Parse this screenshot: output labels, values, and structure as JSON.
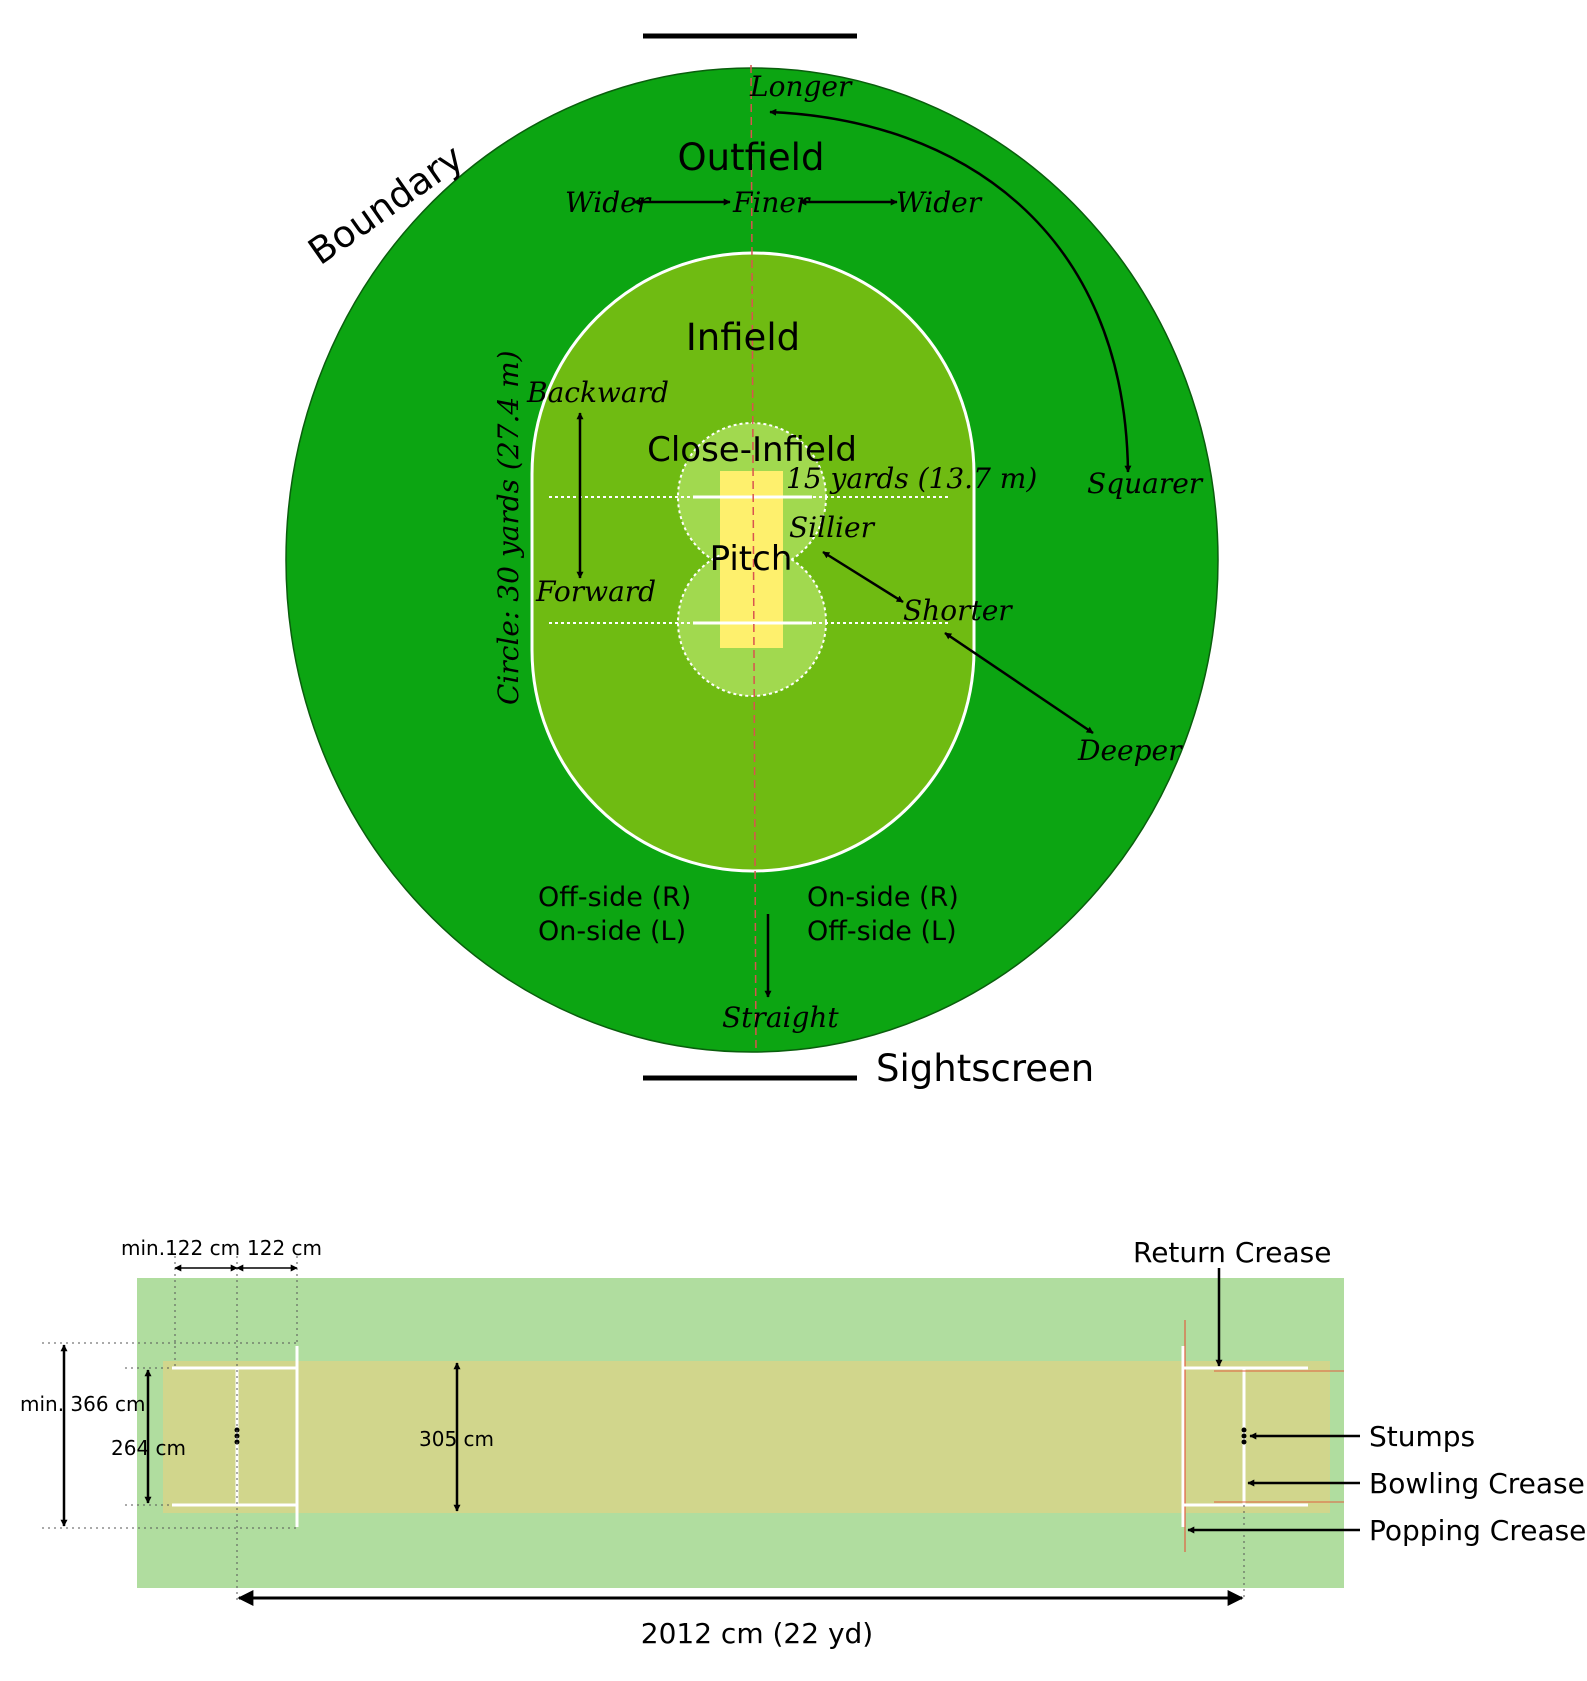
{
  "field": {
    "colors": {
      "outfield": "#0ca512",
      "infield": "#6fbb12",
      "close_infield": "#a1d94f",
      "pitch": "#fef06d"
    },
    "labels": {
      "boundary": "Boundary",
      "outfield": "Outfield",
      "infield": "Infield",
      "close_infield": "Close-Infield",
      "pitch": "Pitch",
      "sightscreen": "Sightscreen",
      "circle": "Circle: 30 yards (27.4 m)",
      "fifteen_yards": "15 yards (13.7 m)",
      "off_side_r": "Off-side (R)",
      "on_side_l": "On-side (L)",
      "on_side_r": "On-side (R)",
      "off_side_l": "Off-side (L)"
    },
    "directions": {
      "longer": "Longer",
      "wider_left": "Wider",
      "finer": "Finer",
      "wider_right": "Wider",
      "squarer": "Squarer",
      "backward": "Backward",
      "forward": "Forward",
      "sillier": "Sillier",
      "shorter": "Shorter",
      "deeper": "Deeper",
      "straight": "Straight"
    }
  },
  "pitch_diagram": {
    "colors": {
      "surround": "#b0dd9f",
      "strip": "#d1d68c"
    },
    "labels": {
      "min_122": "min.122 cm",
      "cm_122": "122 cm",
      "min_366": "min. 366 cm",
      "cm_264": "264 cm",
      "cm_305": "305 cm",
      "length": "2012 cm (22 yd)",
      "return_crease": "Return Crease",
      "stumps": "Stumps",
      "bowling_crease": "Bowling Crease",
      "popping_crease": "Popping Crease"
    }
  }
}
